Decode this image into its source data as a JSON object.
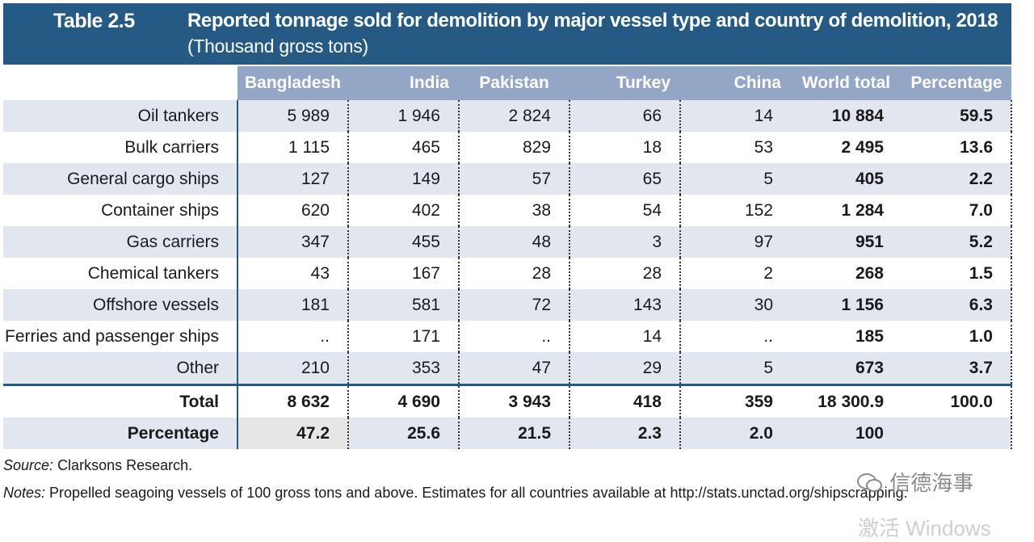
{
  "table": {
    "label": "Table 2.5",
    "title": "Reported tonnage sold for demolition by major vessel type and country of demolition, 2018",
    "subtitle": "(Thousand gross tons)",
    "columns": [
      "Bangladesh",
      "India",
      "Pakistan",
      "Turkey",
      "China",
      "World total",
      "Percentage"
    ],
    "rows": [
      {
        "label": "Oil tankers",
        "values": [
          "5 989",
          "1 946",
          "2 824",
          "66",
          "14",
          "10 884",
          "59.5"
        ]
      },
      {
        "label": "Bulk carriers",
        "values": [
          "1 115",
          "465",
          "829",
          "18",
          "53",
          "2 495",
          "13.6"
        ]
      },
      {
        "label": "General cargo ships",
        "values": [
          "127",
          "149",
          "57",
          "65",
          "5",
          "405",
          "2.2"
        ]
      },
      {
        "label": "Container ships",
        "values": [
          "620",
          "402",
          "38",
          "54",
          "152",
          "1 284",
          "7.0"
        ]
      },
      {
        "label": "Gas carriers",
        "values": [
          "347",
          "455",
          "48",
          "3",
          "97",
          "951",
          "5.2"
        ]
      },
      {
        "label": "Chemical tankers",
        "values": [
          "43",
          "167",
          "28",
          "28",
          "2",
          "268",
          "1.5"
        ]
      },
      {
        "label": "Offshore vessels",
        "values": [
          "181",
          "581",
          "72",
          "143",
          "30",
          "1 156",
          "6.3"
        ]
      },
      {
        "label": "Ferries and passenger ships",
        "values": [
          "..",
          "171",
          "..",
          "14",
          "..",
          "185",
          "1.0"
        ]
      },
      {
        "label": "Other",
        "values": [
          "210",
          "353",
          "47",
          "29",
          "5",
          "673",
          "3.7"
        ]
      }
    ],
    "total": {
      "label": "Total",
      "values": [
        "8 632",
        "4 690",
        "3 943",
        "418",
        "359",
        "18 300.9",
        "100.0"
      ]
    },
    "percentage": {
      "label": "Percentage",
      "values": [
        "47.2",
        "25.6",
        "21.5",
        "2.3",
        "2.0",
        "100",
        ""
      ]
    }
  },
  "source": {
    "prefix": "Source:",
    "text": "Clarksons Research."
  },
  "notes": {
    "prefix": "Notes:",
    "text": "Propelled seagoing vessels of 100 gross tons and above. Estimates for all countries available at http://stats.unctad.org/shipscrapping."
  },
  "watermark": {
    "text": "信德海事",
    "icon": "wechat-icon",
    "overlay": "激活 Windows"
  },
  "colors": {
    "header": "#255a84",
    "column_header": "#94a6c5",
    "row_shade": "#e2e6ef"
  }
}
